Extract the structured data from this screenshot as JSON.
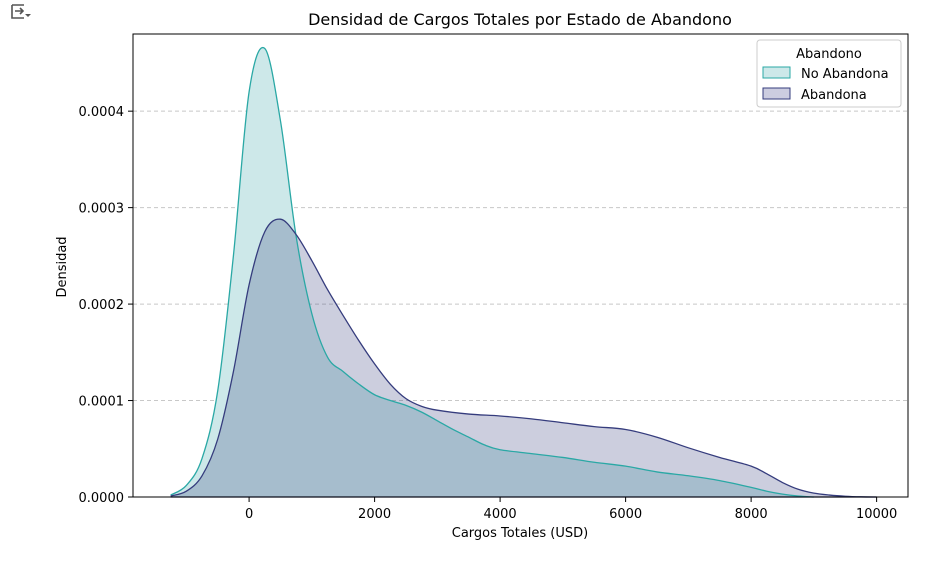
{
  "toolbar": {
    "icon": "export-icon"
  },
  "chart_data": {
    "type": "area",
    "title": "Densidad de Cargos Totales por Estado de Abandono",
    "xlabel": "Cargos Totales (USD)",
    "ylabel": "Densidad",
    "xlim": [
      -1850,
      10500
    ],
    "ylim": [
      0,
      0.00048
    ],
    "x_ticks": [
      0,
      2000,
      4000,
      6000,
      8000,
      10000
    ],
    "x_tick_labels": [
      "0",
      "2000",
      "4000",
      "6000",
      "8000",
      "10000"
    ],
    "y_ticks": [
      0,
      0.0001,
      0.0002,
      0.0003,
      0.0004
    ],
    "y_tick_labels": [
      "0.0000",
      "0.0001",
      "0.0002",
      "0.0003",
      "0.0004"
    ],
    "grid": "y-dashed",
    "legend": {
      "title": "Abandono",
      "placement": "top-right"
    },
    "series": [
      {
        "name": "No Abandona",
        "color": "#2aa8a5",
        "fill": "#cde8e9",
        "x": [
          -1250,
          -1000,
          -750,
          -500,
          -250,
          0,
          250,
          500,
          750,
          1000,
          1250,
          1500,
          1750,
          2000,
          2250,
          2500,
          2750,
          3000,
          3250,
          3500,
          3750,
          4000,
          4500,
          5000,
          5500,
          6000,
          6500,
          7000,
          7500,
          8000,
          8250,
          8500,
          8750,
          9000
        ],
        "values": [
          2e-06,
          1.2e-05,
          4e-05,
          0.00011,
          0.00025,
          0.00042,
          0.000465,
          0.00039,
          0.00027,
          0.00019,
          0.000145,
          0.00013,
          0.000117,
          0.000106,
          0.0001,
          9.5e-05,
          8.8e-05,
          7.9e-05,
          7e-05,
          6.2e-05,
          5.4e-05,
          4.9e-05,
          4.5e-05,
          4.1e-05,
          3.6e-05,
          3.2e-05,
          2.6e-05,
          2.2e-05,
          1.7e-05,
          1e-05,
          6e-06,
          3e-06,
          1e-06,
          0
        ]
      },
      {
        "name": "Abandona",
        "color": "#353c7d",
        "fill": "#cccde0",
        "x": [
          -1250,
          -1000,
          -750,
          -500,
          -250,
          0,
          250,
          500,
          750,
          1000,
          1250,
          1500,
          1750,
          2000,
          2250,
          2500,
          2750,
          3000,
          3500,
          4000,
          4500,
          5000,
          5500,
          6000,
          6500,
          7000,
          7500,
          8000,
          8250,
          8500,
          8750,
          9000,
          9250,
          9500,
          9750,
          10000
        ],
        "values": [
          1e-06,
          6e-06,
          2.2e-05,
          6e-05,
          0.00013,
          0.00022,
          0.000275,
          0.000288,
          0.000272,
          0.000245,
          0.000215,
          0.000188,
          0.000162,
          0.000138,
          0.000117,
          0.000102,
          9.4e-05,
          9e-05,
          8.6e-05,
          8.4e-05,
          8.1e-05,
          7.7e-05,
          7.3e-05,
          7e-05,
          6.2e-05,
          5.1e-05,
          4.1e-05,
          3.2e-05,
          2.4e-05,
          1.5e-05,
          8e-06,
          4e-06,
          2e-06,
          8e-07,
          2e-07,
          0
        ]
      }
    ]
  }
}
